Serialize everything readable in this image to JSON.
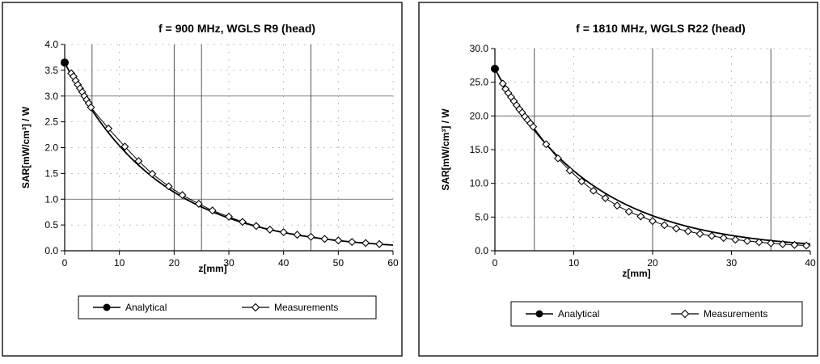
{
  "chart_data": [
    {
      "type": "scatter",
      "title": "f = 900 MHz, WGLS R9 (head)",
      "xlabel": "z[mm]",
      "ylabel": "SAR[mW/cm³] / W",
      "xlim": [
        0,
        60
      ],
      "ylim": [
        0,
        4.0
      ],
      "xticks": [
        "0",
        "10",
        "20",
        "30",
        "40",
        "50",
        "60"
      ],
      "yticks": [
        "0.0",
        "0.5",
        "1.0",
        "1.5",
        "2.0",
        "2.5",
        "3.0",
        "3.5",
        "4.0"
      ],
      "grid": "partial dotted and solid gridlines",
      "legend_position": "bottom",
      "series": [
        {
          "name": "Analytical",
          "marker": "filled-circle",
          "line": true,
          "x": [
            0,
            60
          ],
          "curve": "exponential",
          "values": [
            3.65,
            0.11
          ],
          "points": [
            [
              0,
              3.65
            ]
          ]
        },
        {
          "name": "Measurements",
          "marker": "open-diamond",
          "line": true,
          "x": [
            1.2,
            1.6,
            2.0,
            2.4,
            2.8,
            3.2,
            3.6,
            4.0,
            4.4,
            4.8,
            8,
            11,
            13.5,
            16,
            19,
            21.5,
            24.5,
            27,
            30,
            32.5,
            35,
            37.5,
            40,
            42.5,
            45,
            47.5,
            50,
            52.5,
            55,
            57.5
          ],
          "y": [
            3.44,
            3.38,
            3.3,
            3.22,
            3.15,
            3.08,
            3.0,
            2.93,
            2.86,
            2.78,
            2.37,
            2.02,
            1.74,
            1.49,
            1.25,
            1.08,
            0.91,
            0.78,
            0.66,
            0.56,
            0.48,
            0.41,
            0.36,
            0.31,
            0.27,
            0.23,
            0.2,
            0.17,
            0.15,
            0.13
          ]
        }
      ]
    },
    {
      "type": "scatter",
      "title": "f = 1810 MHz, WGLS R22 (head)",
      "xlabel": "z[mm]",
      "ylabel": "SAR[mW/cm³] / W",
      "xlim": [
        0,
        40
      ],
      "ylim": [
        0,
        30.0
      ],
      "xticks": [
        "0",
        "10",
        "20",
        "30",
        "40"
      ],
      "yticks": [
        "0.0",
        "5.0",
        "10.0",
        "15.0",
        "20.0",
        "25.0",
        "30.0"
      ],
      "grid": "partial dotted and solid gridlines",
      "legend_position": "bottom",
      "series": [
        {
          "name": "Analytical",
          "marker": "filled-circle",
          "line": true,
          "x": [
            0,
            40
          ],
          "curve": "exponential",
          "values": [
            27.0,
            1.0
          ],
          "points": [
            [
              0,
              27.0
            ]
          ]
        },
        {
          "name": "Measurements",
          "marker": "open-diamond",
          "line": true,
          "x": [
            1.0,
            1.35,
            1.7,
            2.05,
            2.4,
            2.75,
            3.1,
            3.45,
            3.8,
            4.15,
            4.5,
            4.85,
            6.5,
            8,
            9.5,
            11,
            12.5,
            14,
            15.5,
            17,
            18.5,
            20,
            21.5,
            23,
            24.5,
            26,
            27.5,
            29,
            30.5,
            32,
            33.5,
            35,
            36.5,
            38,
            39.5
          ],
          "y": [
            24.8,
            24.0,
            23.4,
            22.8,
            22.2,
            21.6,
            21.0,
            20.5,
            19.9,
            19.4,
            18.9,
            18.4,
            15.8,
            13.7,
            11.9,
            10.3,
            8.9,
            7.8,
            6.7,
            5.8,
            5.1,
            4.4,
            3.8,
            3.3,
            2.9,
            2.5,
            2.2,
            1.9,
            1.65,
            1.45,
            1.27,
            1.12,
            0.98,
            0.87,
            0.77
          ]
        }
      ]
    }
  ]
}
